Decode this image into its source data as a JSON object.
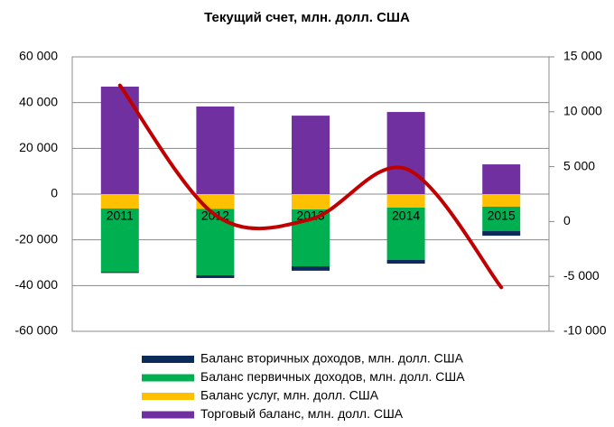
{
  "chart_data": {
    "type": "bar_line",
    "title": "Текущий счет, млн. долл. США",
    "categories": [
      "2011",
      "2012",
      "2013",
      "2014",
      "2015"
    ],
    "series": [
      {
        "name": "Торговый баланс, млн. долл. США",
        "color": "#7030a0",
        "values": [
          47000,
          38300,
          34300,
          35900,
          13000
        ]
      },
      {
        "name": "Баланс услуг, млн. долл. США",
        "color": "#ffc000",
        "values": [
          -6300,
          -6500,
          -6700,
          -5900,
          -5500
        ]
      },
      {
        "name": "Баланс первичных доходов, млн. долл. США",
        "color": "#00b050",
        "values": [
          -27700,
          -29000,
          -24900,
          -22900,
          -10700
        ]
      },
      {
        "name": "Баланс вторичных доходов, млн. долл. США",
        "color": "#0d2b5a",
        "values": [
          -500,
          -1200,
          -1900,
          -1600,
          -2000
        ]
      },
      {
        "type": "line",
        "axis": "y2",
        "color": "#c00000",
        "values": [
          12400,
          600,
          200,
          4800,
          -6000
        ]
      }
    ],
    "ylim": [
      -60000,
      60000
    ],
    "yticks": [
      {
        "value": -60000,
        "label": "-60 000"
      },
      {
        "value": -40000,
        "label": "-40 000"
      },
      {
        "value": -20000,
        "label": "-20 000"
      },
      0,
      {
        "value": 20000,
        "label": "20 000"
      },
      {
        "value": 40000,
        "label": "40 000"
      },
      {
        "value": 60000,
        "label": "60 000"
      }
    ],
    "y2lim": [
      -10000,
      15000
    ],
    "y2ticks": [
      {
        "value": -10000,
        "label": "-10 000"
      },
      {
        "value": -5000,
        "label": "-5 000"
      },
      0,
      {
        "value": 5000,
        "label": "5 000"
      },
      {
        "value": 10000,
        "label": "10 000"
      },
      {
        "value": 15000,
        "label": "15 000"
      }
    ],
    "legend": "bottom"
  }
}
